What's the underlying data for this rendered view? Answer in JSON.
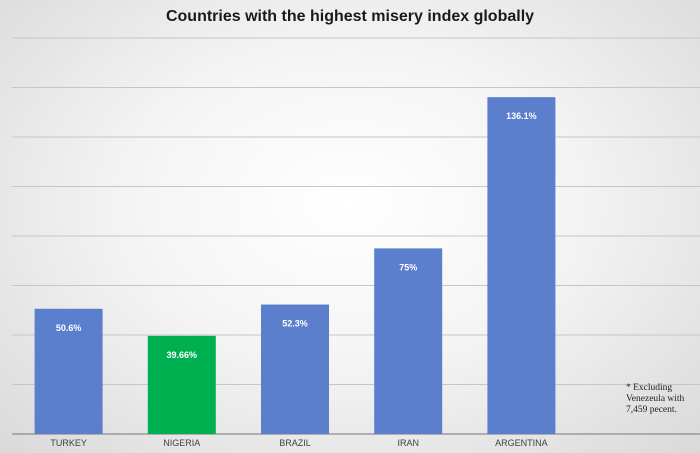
{
  "chart_data": {
    "type": "bar",
    "title": "Countries with the highest misery index globally",
    "categories": [
      "TURKEY",
      "NIGERIA",
      "BRAZIL",
      "IRAN",
      "ARGENTINA"
    ],
    "values": [
      50.6,
      39.66,
      52.3,
      75,
      136.1
    ],
    "data_labels": [
      "50.6%",
      "39.66%",
      "52.3%",
      "75%",
      "136.1%"
    ],
    "colors": [
      "#5b7fcc",
      "#00b050",
      "#5b7fcc",
      "#5b7fcc",
      "#5b7fcc"
    ],
    "ylim": [
      0,
      160
    ],
    "grid": true,
    "yticks_shown": false,
    "xlabel": "",
    "ylabel": ""
  },
  "footnote": "* Excluding Venezeula with 7,459 pecent."
}
